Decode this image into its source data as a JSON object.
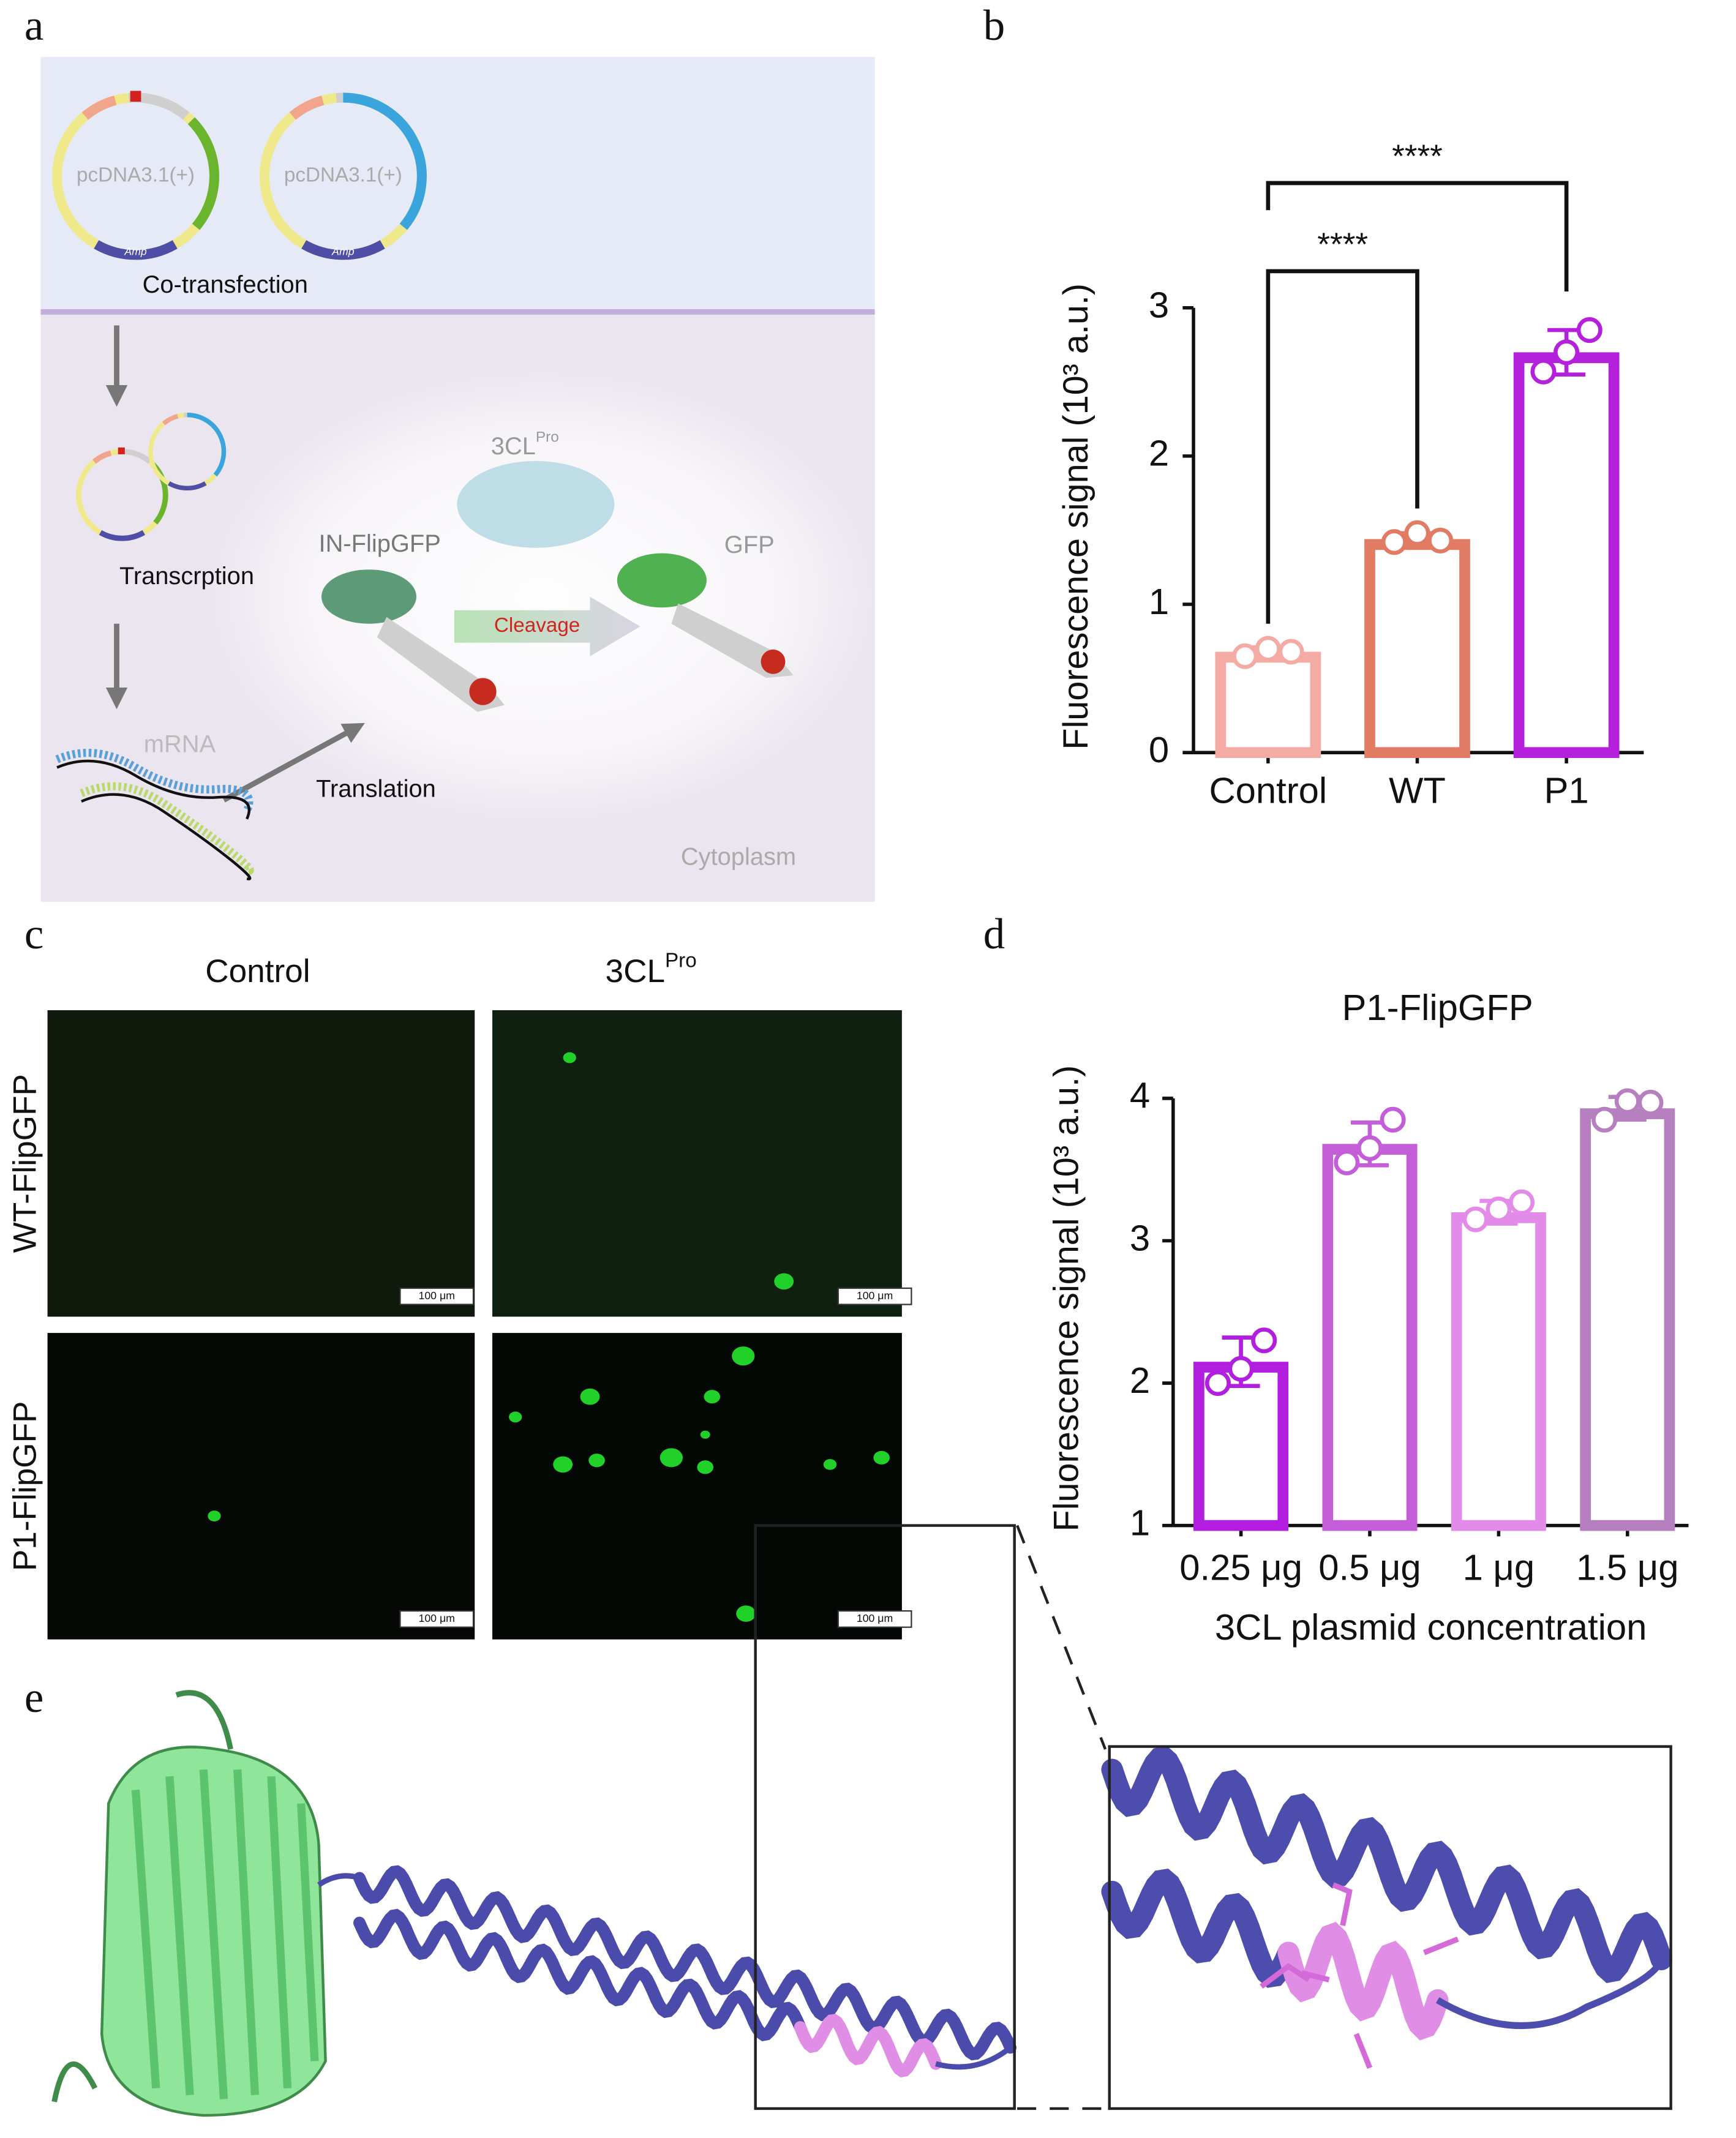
{
  "panel_labels": [
    "a",
    "b",
    "c",
    "d",
    "e"
  ],
  "panel_a": {
    "plasmids": [
      "pcDNA3.1(+)",
      "pcDNA3.1(+)"
    ],
    "amp": [
      "Amp",
      "Amp"
    ],
    "cotransfection": "Co-transfection",
    "transcription": "Transcrption",
    "mrna": "mRNA",
    "translation": "Translation",
    "protease": "3CL",
    "protease_sup": "Pro",
    "substrate": "IN-FlipGFP",
    "product": "GFP",
    "cleavage": "Cleavage",
    "compartment": "Cytoplasm"
  },
  "chart_data": [
    {
      "type": "bar",
      "ylabel": "Fluorescence signal (10³ a.u.)",
      "categories": [
        "Control",
        "WT",
        "P1"
      ],
      "values": [
        0.68,
        1.44,
        2.7
      ],
      "errors": [
        0.03,
        0.04,
        0.15
      ],
      "points": [
        [
          0.65,
          0.7,
          0.68
        ],
        [
          1.42,
          1.48,
          1.43
        ],
        [
          2.57,
          2.7,
          2.85
        ]
      ],
      "colors": [
        "#f4aba3",
        "#e27b63",
        "#b520dc"
      ],
      "ylim": [
        0,
        3
      ],
      "yticks": [
        0,
        1,
        2,
        3
      ],
      "significance": [
        "****",
        "****"
      ]
    },
    {
      "type": "bar",
      "title": "P1-FlipGFP",
      "ylabel": "Fluorescence signal (10³ a.u.)",
      "xlabel": "3CL plasmid concentration",
      "categories": [
        "0.25 μg",
        "0.5 μg",
        "1 μg",
        "1.5 μg"
      ],
      "values": [
        2.15,
        3.68,
        3.2,
        3.93
      ],
      "errors": [
        0.17,
        0.15,
        0.08,
        0.08
      ],
      "points": [
        [
          2.0,
          2.1,
          2.3
        ],
        [
          3.55,
          3.65,
          3.85
        ],
        [
          3.15,
          3.22,
          3.27
        ],
        [
          3.85,
          3.98,
          3.97
        ]
      ],
      "colors": [
        "#b21ee0",
        "#c35ed8",
        "#e38be8",
        "#b67fbf"
      ],
      "ylim": [
        1,
        4
      ],
      "yticks": [
        1,
        2,
        3,
        4
      ]
    }
  ],
  "panel_c": {
    "columns": [
      "Control",
      "3CL"
    ],
    "column_sup": "Pro",
    "rows": [
      "WT-FlipGFP",
      "P1-FlipGFP"
    ],
    "scale_bars": [
      "100 μm",
      "100 μm",
      "100 μm",
      "100 μm"
    ]
  }
}
